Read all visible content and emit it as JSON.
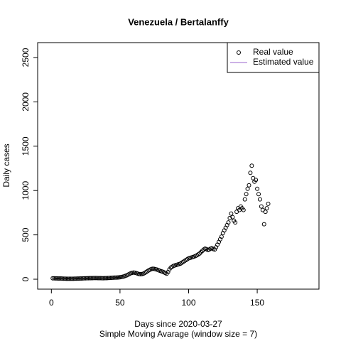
{
  "chart_data": {
    "type": "scatter",
    "title": "Venezuela / Bertalanffy",
    "xlabel": "Days since 2020-03-27",
    "subtitle": "Simple Moving Avarage (window size = 7)",
    "ylabel": "Daily cases",
    "xlim": [
      -10,
      195
    ],
    "ylim": [
      -112,
      2668
    ],
    "xticks": [
      0,
      50,
      100,
      150
    ],
    "yticks": [
      0,
      500,
      1000,
      1500,
      2000,
      2500
    ],
    "legend_position": "topright",
    "legend": [
      {
        "name": "Real value",
        "color": "#000000",
        "symbol": "circle"
      },
      {
        "name": "Estimated value",
        "color": "#9966cc",
        "symbol": "line"
      }
    ],
    "x": [
      1,
      2,
      3,
      4,
      5,
      6,
      7,
      8,
      9,
      10,
      11,
      12,
      13,
      14,
      15,
      16,
      17,
      18,
      19,
      20,
      21,
      22,
      23,
      24,
      25,
      26,
      27,
      28,
      29,
      30,
      31,
      32,
      33,
      34,
      35,
      36,
      37,
      38,
      39,
      40,
      41,
      42,
      43,
      44,
      45,
      46,
      47,
      48,
      49,
      50,
      51,
      52,
      53,
      54,
      55,
      56,
      57,
      58,
      59,
      60,
      61,
      62,
      63,
      64,
      65,
      66,
      67,
      68,
      69,
      70,
      71,
      72,
      73,
      74,
      75,
      76,
      77,
      78,
      79,
      80,
      81,
      82,
      83,
      84,
      85,
      86,
      87,
      88,
      89,
      90,
      91,
      92,
      93,
      94,
      95,
      96,
      97,
      98,
      99,
      100,
      101,
      102,
      103,
      104,
      105,
      106,
      107,
      108,
      109,
      110,
      111,
      112,
      113,
      114,
      115,
      116,
      117,
      118,
      119,
      120,
      121,
      122,
      123,
      124,
      125,
      126,
      127,
      128,
      129,
      130,
      131,
      132,
      133,
      134,
      135,
      136,
      137,
      138,
      139,
      140,
      141,
      142,
      143,
      144,
      145,
      146,
      147,
      148,
      149,
      150,
      151,
      152,
      153,
      154,
      155,
      156,
      157,
      158
    ],
    "series": [
      {
        "name": "Real value",
        "color": "#000000",
        "values": [
          10,
          10,
          9,
          9,
          8,
          8,
          8,
          7,
          6,
          6,
          5,
          5,
          5,
          5,
          5,
          5,
          6,
          6,
          7,
          7,
          8,
          8,
          9,
          10,
          10,
          11,
          11,
          12,
          12,
          12,
          13,
          13,
          13,
          12,
          12,
          12,
          11,
          11,
          12,
          12,
          13,
          14,
          15,
          16,
          17,
          18,
          18,
          19,
          20,
          22,
          25,
          28,
          32,
          38,
          44,
          52,
          60,
          68,
          72,
          75,
          72,
          68,
          62,
          58,
          56,
          58,
          62,
          70,
          80,
          90,
          100,
          108,
          115,
          118,
          116,
          112,
          108,
          102,
          95,
          90,
          85,
          78,
          70,
          62,
          80,
          110,
          130,
          140,
          150,
          155,
          160,
          165,
          170,
          175,
          185,
          195,
          205,
          215,
          225,
          235,
          240,
          245,
          250,
          255,
          262,
          270,
          280,
          290,
          305,
          320,
          335,
          345,
          340,
          330,
          335,
          345,
          350,
          340,
          335,
          360,
          390,
          420,
          450,
          480,
          520,
          550,
          580,
          610,
          640,
          690,
          740,
          700,
          660,
          640,
          760,
          800,
          780,
          820,
          800,
          780,
          900,
          960,
          1020,
          1060,
          1200,
          1280,
          1140,
          1100,
          1120,
          1020,
          960,
          900,
          820,
          780,
          620,
          760,
          800,
          850
        ]
      }
    ]
  }
}
